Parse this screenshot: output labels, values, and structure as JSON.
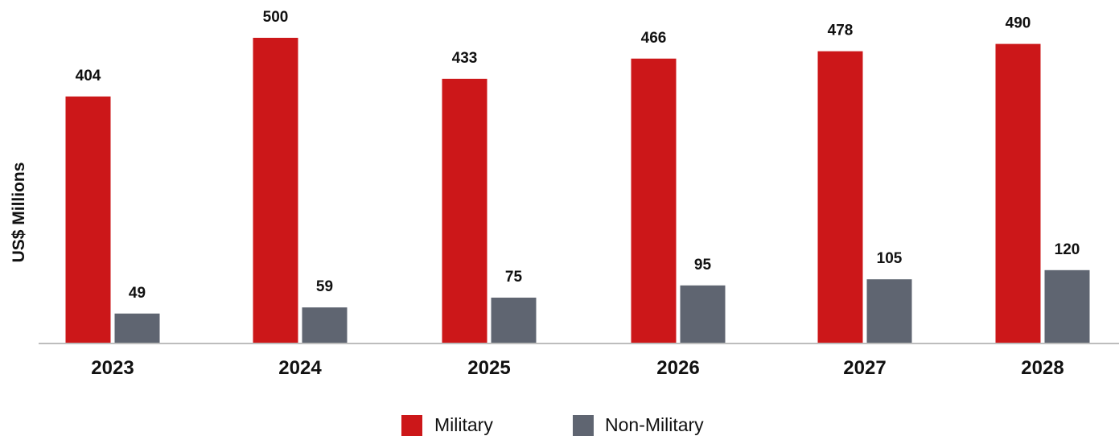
{
  "chart_data": {
    "type": "bar",
    "categories": [
      "2023",
      "2024",
      "2025",
      "2026",
      "2027",
      "2028"
    ],
    "series": [
      {
        "name": "Military",
        "values": [
          404,
          500,
          433,
          466,
          478,
          490
        ],
        "color": "#cc1719"
      },
      {
        "name": "Non-Military",
        "values": [
          49,
          59,
          75,
          95,
          105,
          120
        ],
        "color": "#5f6571"
      }
    ],
    "title": "",
    "xlabel": "",
    "ylabel": "US$ Millions",
    "ylim": [
      0,
      500
    ],
    "grid": false,
    "data_labels": true,
    "legend_position": "bottom-center",
    "axis_color": "#bdbdbd"
  }
}
